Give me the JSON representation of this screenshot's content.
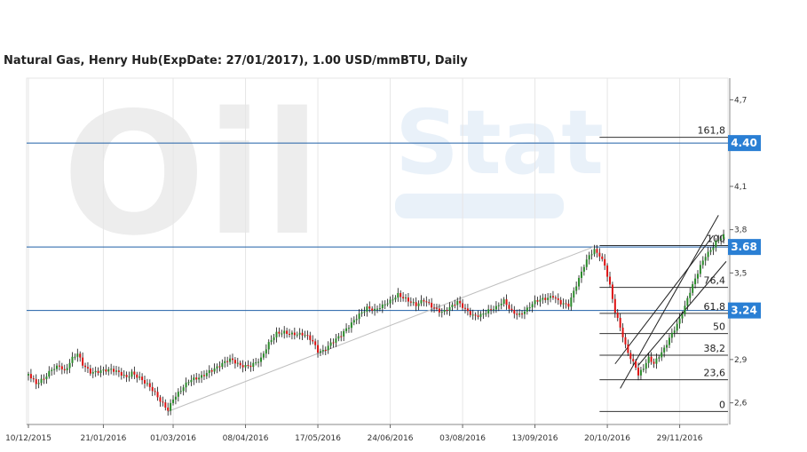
{
  "title": "Natural Gas, Henry Hub(ExpDate: 27/01/2017), 1.00 USD/mmBTU, Daily",
  "watermark": {
    "main": "Oil",
    "sub": "Stat"
  },
  "colors": {
    "up": "#2a8a2a",
    "down": "#dd1111",
    "level_line": "#1f5fa6",
    "badge": "#2a7fd4",
    "grid": "#e6e6e6",
    "trend": "#bfbfbf"
  },
  "chart_data": {
    "type": "candlestick",
    "title": "Natural Gas, Henry Hub(ExpDate: 27/01/2017), 1.00 USD/mmBTU, Daily",
    "y_ticks": [
      "4,7",
      "4,1",
      "3,8",
      "3,5",
      "2,9",
      "2,6"
    ],
    "y_tick_values": [
      4.7,
      4.1,
      3.8,
      3.5,
      2.9,
      2.6
    ],
    "ylim": [
      2.45,
      4.85
    ],
    "x_ticks": [
      "10/12/2015",
      "21/01/2016",
      "01/03/2016",
      "08/04/2016",
      "17/05/2016",
      "24/06/2016",
      "03/08/2016",
      "13/09/2016",
      "20/10/2016",
      "29/11/2016"
    ],
    "x_tick_index": [
      0,
      29,
      56,
      84,
      112,
      140,
      168,
      196,
      224,
      252
    ],
    "bars_total": 270,
    "levels": [
      {
        "value": 4.4,
        "label": "4.40"
      },
      {
        "value": 3.68,
        "label": "3.68"
      },
      {
        "value": 3.24,
        "label": "3.24"
      }
    ],
    "fibonacci": {
      "start_index": 221,
      "end_index": 270,
      "levels": [
        {
          "label": "161,8",
          "value": 4.44
        },
        {
          "label": "100",
          "value": 3.69
        },
        {
          "label": "76,4",
          "value": 3.4
        },
        {
          "label": "61,8",
          "value": 3.22
        },
        {
          "label": "50",
          "value": 3.08
        },
        {
          "label": "38,2",
          "value": 2.93
        },
        {
          "label": "23,6",
          "value": 2.76
        },
        {
          "label": "0",
          "value": 2.54
        }
      ]
    },
    "trendline": {
      "from": {
        "i": 54,
        "v": 2.54
      },
      "to": {
        "i": 220,
        "v": 3.69
      }
    },
    "channel": {
      "lines": [
        {
          "from": {
            "i": 229,
            "v": 2.7
          },
          "to": {
            "i": 267,
            "v": 3.9
          }
        },
        {
          "from": {
            "i": 227,
            "v": 2.87
          },
          "to": {
            "i": 265,
            "v": 3.76
          }
        },
        {
          "from": {
            "i": 236,
            "v": 2.86
          },
          "to": {
            "i": 270,
            "v": 3.58
          }
        }
      ]
    },
    "anchors": [
      [
        0,
        2.8
      ],
      [
        3,
        2.72
      ],
      [
        6,
        2.76
      ],
      [
        9,
        2.84
      ],
      [
        12,
        2.87
      ],
      [
        14,
        2.82
      ],
      [
        17,
        2.9
      ],
      [
        19,
        2.93
      ],
      [
        21,
        2.86
      ],
      [
        24,
        2.82
      ],
      [
        28,
        2.83
      ],
      [
        32,
        2.82
      ],
      [
        35,
        2.8
      ],
      [
        38,
        2.78
      ],
      [
        40,
        2.82
      ],
      [
        43,
        2.78
      ],
      [
        47,
        2.7
      ],
      [
        51,
        2.61
      ],
      [
        54,
        2.56
      ],
      [
        56,
        2.64
      ],
      [
        59,
        2.69
      ],
      [
        62,
        2.74
      ],
      [
        66,
        2.77
      ],
      [
        70,
        2.83
      ],
      [
        74,
        2.86
      ],
      [
        78,
        2.89
      ],
      [
        82,
        2.86
      ],
      [
        86,
        2.87
      ],
      [
        90,
        2.9
      ],
      [
        93,
        3.0
      ],
      [
        96,
        3.08
      ],
      [
        99,
        3.1
      ],
      [
        103,
        3.08
      ],
      [
        107,
        3.06
      ],
      [
        110,
        3.02
      ],
      [
        112,
        2.96
      ],
      [
        114,
        2.97
      ],
      [
        117,
        3.02
      ],
      [
        121,
        3.06
      ],
      [
        124,
        3.12
      ],
      [
        128,
        3.22
      ],
      [
        131,
        3.27
      ],
      [
        134,
        3.24
      ],
      [
        137,
        3.26
      ],
      [
        140,
        3.3
      ],
      [
        143,
        3.36
      ],
      [
        146,
        3.33
      ],
      [
        150,
        3.27
      ],
      [
        153,
        3.3
      ],
      [
        156,
        3.27
      ],
      [
        160,
        3.24
      ],
      [
        163,
        3.26
      ],
      [
        166,
        3.29
      ],
      [
        169,
        3.24
      ],
      [
        172,
        3.21
      ],
      [
        175,
        3.22
      ],
      [
        178,
        3.24
      ],
      [
        181,
        3.25
      ],
      [
        184,
        3.3
      ],
      [
        187,
        3.24
      ],
      [
        190,
        3.22
      ],
      [
        193,
        3.25
      ],
      [
        196,
        3.29
      ],
      [
        200,
        3.32
      ],
      [
        203,
        3.35
      ],
      [
        206,
        3.3
      ],
      [
        209,
        3.27
      ],
      [
        211,
        3.36
      ],
      [
        213,
        3.45
      ],
      [
        215,
        3.55
      ],
      [
        217,
        3.63
      ],
      [
        219,
        3.67
      ],
      [
        221,
        3.63
      ],
      [
        223,
        3.55
      ],
      [
        225,
        3.4
      ],
      [
        227,
        3.22
      ],
      [
        229,
        3.12
      ],
      [
        231,
        3.0
      ],
      [
        233,
        2.92
      ],
      [
        235,
        2.86
      ],
      [
        236,
        2.8
      ],
      [
        238,
        2.84
      ],
      [
        240,
        2.9
      ],
      [
        242,
        2.86
      ],
      [
        244,
        2.92
      ],
      [
        246,
        2.98
      ],
      [
        248,
        3.06
      ],
      [
        250,
        3.12
      ],
      [
        252,
        3.18
      ],
      [
        254,
        3.26
      ],
      [
        256,
        3.36
      ],
      [
        258,
        3.45
      ],
      [
        260,
        3.55
      ],
      [
        262,
        3.63
      ],
      [
        264,
        3.67
      ],
      [
        266,
        3.72
      ],
      [
        269,
        3.75
      ]
    ]
  }
}
